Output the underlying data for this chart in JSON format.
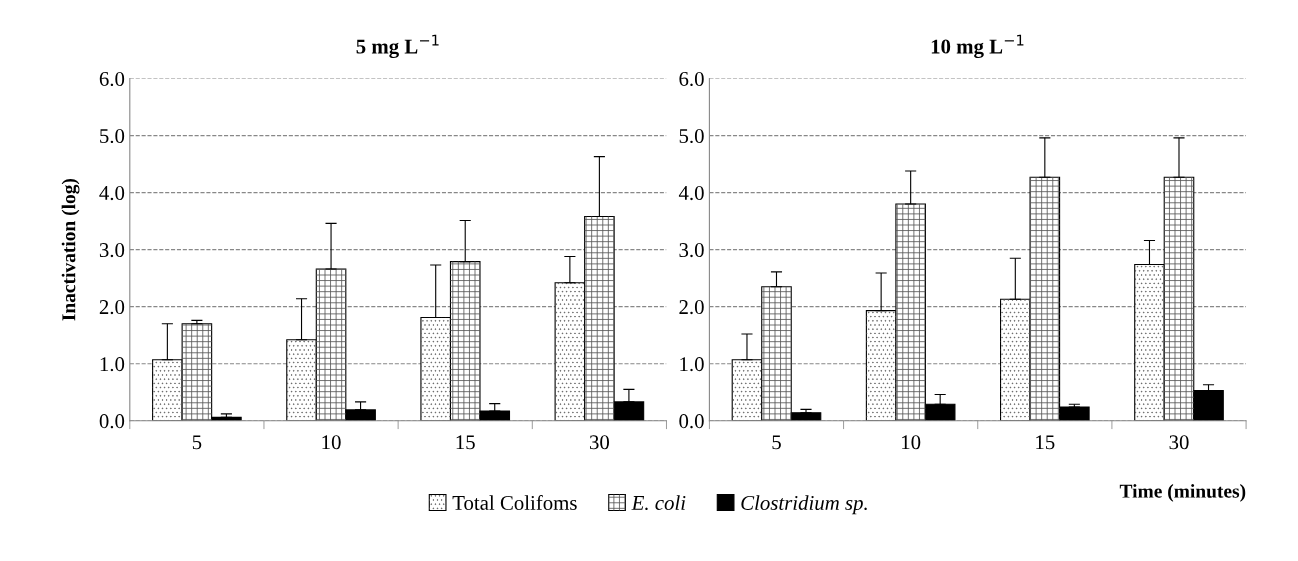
{
  "chart_data": [
    {
      "type": "bar",
      "title": "5 mg L$^{−1}$",
      "ylabel": "Inactivation (log)",
      "categories": [
        "5",
        "10",
        "15",
        "30"
      ],
      "ylim": [
        0,
        6
      ],
      "yticks": [
        {
          "value": 0,
          "label": "0.0"
        },
        {
          "value": 1,
          "label": "1.0"
        },
        {
          "value": 2,
          "label": "2.0"
        },
        {
          "value": 3,
          "label": "3.0"
        },
        {
          "value": 4,
          "label": "4.0"
        },
        {
          "value": 5,
          "label": "5.0"
        },
        {
          "value": 6,
          "label": "6.0"
        }
      ],
      "grid": "y",
      "legend": "bottom",
      "series": [
        {
          "name": "Total Colifoms",
          "color": "#ffffff",
          "values": [
            1.07,
            1.42,
            1.81,
            2.42
          ],
          "errors": [
            [
              1.07,
              1.7
            ],
            [
              1.42,
              2.14
            ],
            [
              1.81,
              2.73
            ],
            [
              2.42,
              2.88
            ]
          ]
        },
        {
          "name": "E. coli",
          "color": "#ffffff",
          "values": [
            1.7,
            2.66,
            2.79,
            3.58
          ],
          "errors": [
            [
              1.7,
              1.76
            ],
            [
              2.66,
              3.46
            ],
            [
              2.79,
              3.51
            ],
            [
              3.58,
              4.63
            ]
          ]
        },
        {
          "name": "Clostridium sp.",
          "color": "#000000",
          "values": [
            0.06,
            0.19,
            0.17,
            0.33
          ],
          "errors": [
            [
              0.06,
              0.12
            ],
            [
              0.19,
              0.33
            ],
            [
              0.17,
              0.3
            ],
            [
              0.33,
              0.55
            ]
          ]
        }
      ]
    },
    {
      "type": "bar",
      "title": "10 mg L$^{−1}$",
      "xlabel": "Time (minutes)",
      "categories": [
        "5",
        "10",
        "15",
        "30"
      ],
      "ylim": [
        0,
        6
      ],
      "yticks": [
        {
          "value": 0,
          "label": "0.0"
        },
        {
          "value": 1,
          "label": "1.0"
        },
        {
          "value": 2,
          "label": "2.0"
        },
        {
          "value": 3,
          "label": "3.0"
        },
        {
          "value": 4,
          "label": "4.0"
        },
        {
          "value": 5,
          "label": "5.0"
        },
        {
          "value": 6,
          "label": "6.0"
        }
      ],
      "grid": "y",
      "series": [
        {
          "name": "Total Colifoms",
          "color": "#ffffff",
          "values": [
            1.07,
            1.93,
            2.13,
            2.74
          ],
          "errors": [
            [
              1.07,
              1.52
            ],
            [
              1.93,
              2.59
            ],
            [
              2.13,
              2.85
            ],
            [
              2.74,
              3.16
            ]
          ]
        },
        {
          "name": "E. coli",
          "color": "#ffffff",
          "values": [
            2.35,
            3.8,
            4.27,
            4.27
          ],
          "errors": [
            [
              2.35,
              2.61
            ],
            [
              3.8,
              4.38
            ],
            [
              4.27,
              4.96
            ],
            [
              4.27,
              4.96
            ]
          ]
        },
        {
          "name": "Clostridium sp.",
          "color": "#000000",
          "values": [
            0.14,
            0.29,
            0.24,
            0.53
          ],
          "errors": [
            [
              0.14,
              0.2
            ],
            [
              0.29,
              0.46
            ],
            [
              0.24,
              0.29
            ],
            [
              0.53,
              0.63
            ]
          ]
        }
      ]
    }
  ]
}
